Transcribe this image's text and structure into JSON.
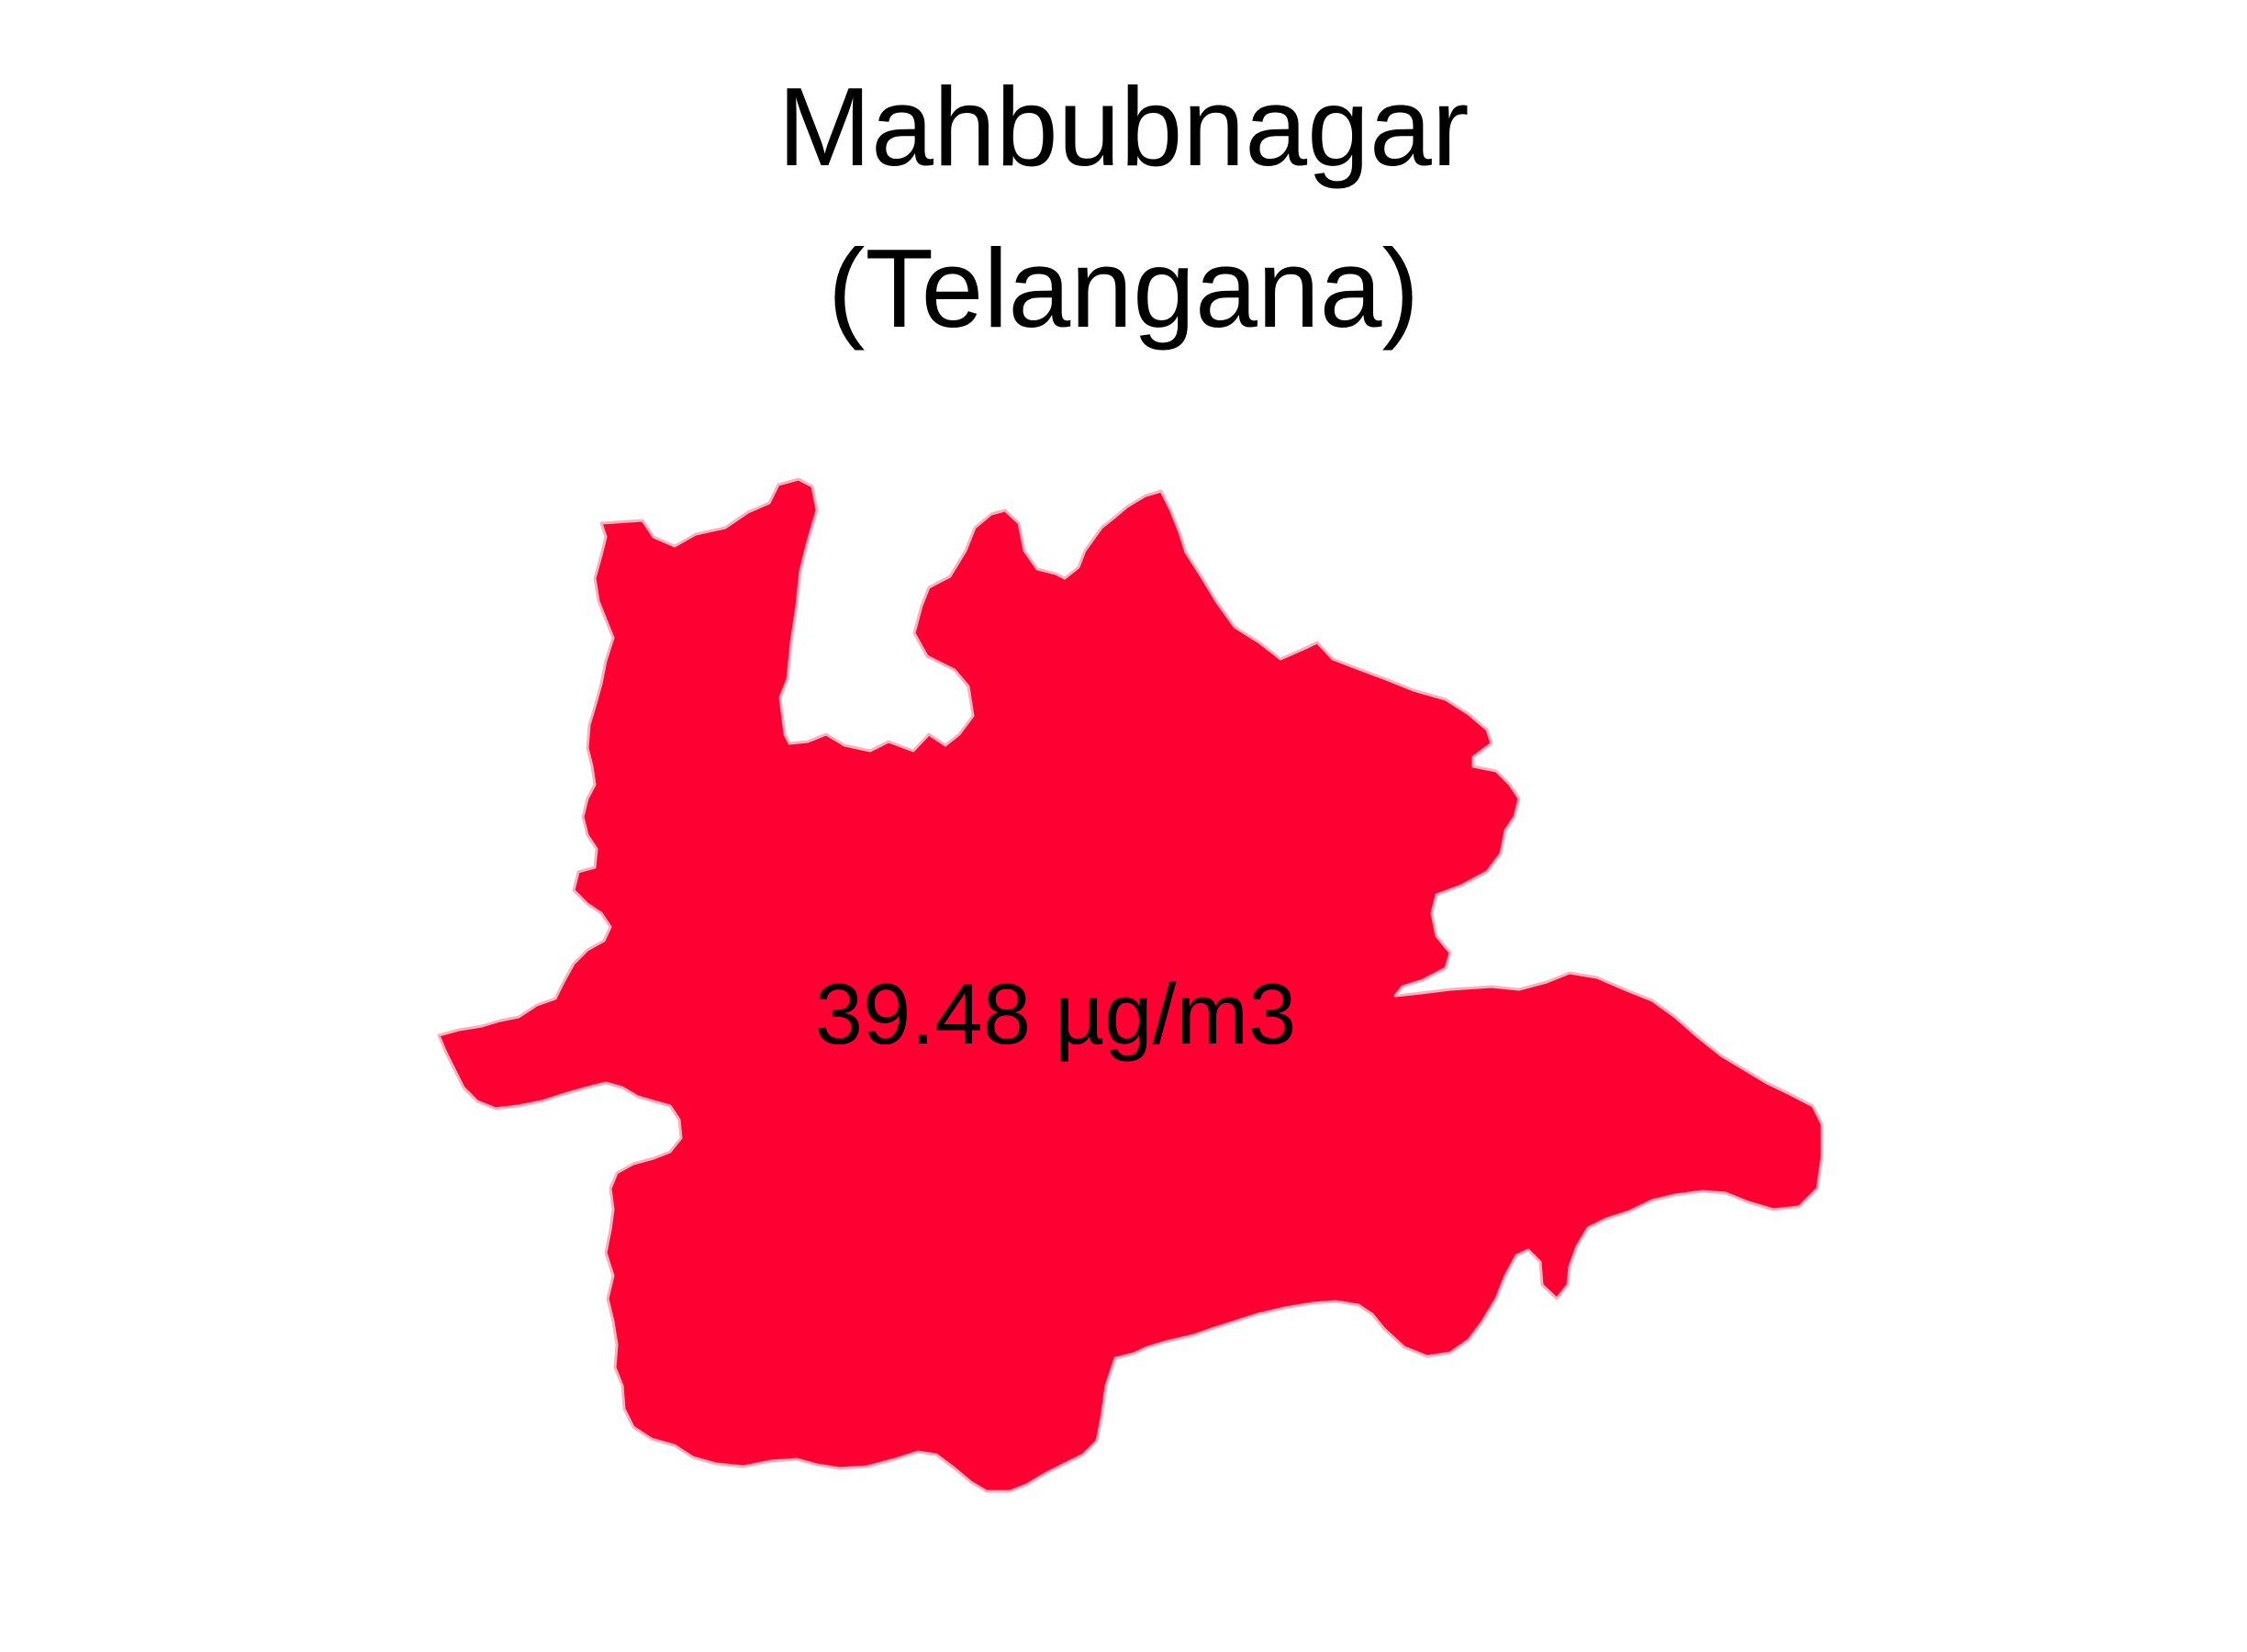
{
  "map": {
    "title_line1": "Mahbubnagar",
    "title_line2": "(Telangana)",
    "value_label": "39.48 µg/m3",
    "district_fill": "#ff0033",
    "district_outline": "#f5b3bf",
    "background": "#ffffff"
  }
}
